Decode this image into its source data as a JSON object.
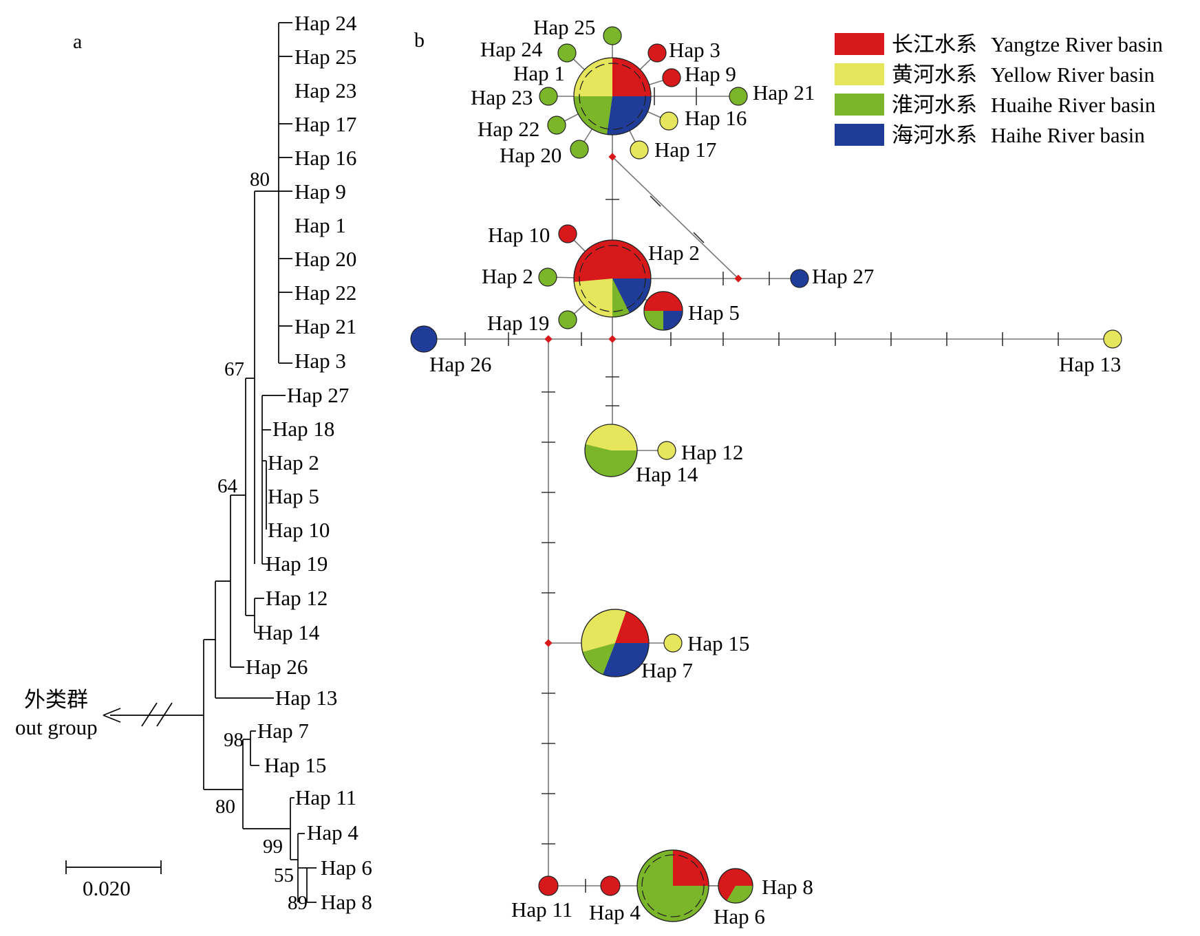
{
  "panel_a": {
    "label": "a",
    "leaves": [
      "Hap 24",
      "Hap 25",
      "Hap 23",
      "Hap 17",
      "Hap 16",
      "Hap 9",
      "Hap 1",
      "Hap 20",
      "Hap 22",
      "Hap 21",
      "Hap 3",
      "Hap 27",
      "Hap 18",
      "Hap 2",
      "Hap 5",
      "Hap 10",
      "Hap 19",
      "Hap 12",
      "Hap 14",
      "Hap 26",
      "Hap 13",
      "Hap 7",
      "Hap 15",
      "Hap 11",
      "Hap 4",
      "Hap 6",
      "Hap 8"
    ],
    "support": [
      "80",
      "67",
      "64",
      "98",
      "80",
      "99",
      "55",
      "89"
    ],
    "outgroup_zh": "外类群",
    "outgroup_en": "out group",
    "scale_label": "0.020"
  },
  "panel_b": {
    "label": "b",
    "legend": [
      {
        "zh": "长江水系",
        "en": "Yangtze River basin",
        "color": "#d7191c"
      },
      {
        "zh": "黄河水系",
        "en": "Yellow River basin",
        "color": "#e6e65c"
      },
      {
        "zh": "淮河水系",
        "en": "Huaihe River basin",
        "color": "#7ab52a"
      },
      {
        "zh": "海河水系",
        "en": "Haihe River basin",
        "color": "#1f3c99"
      }
    ],
    "labels": [
      "Hap 25",
      "Hap 3",
      "Hap 24",
      "Hap 9",
      "Hap 1",
      "Hap 21",
      "Hap 23",
      "Hap 16",
      "Hap 22",
      "Hap 17",
      "Hap 20",
      "Hap 10",
      "Hap 2",
      "Hap 2",
      "Hap 27",
      "Hap 5",
      "Hap 19",
      "Hap 26",
      "Hap 13",
      "Hap 12",
      "Hap 14",
      "Hap 15",
      "Hap 7",
      "Hap 8",
      "Hap 11",
      "Hap 4",
      "Hap 6"
    ]
  }
}
